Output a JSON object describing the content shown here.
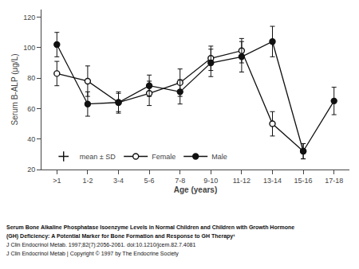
{
  "chart_data": {
    "type": "line",
    "title": [
      "Serum Bone Alkaline Phosphatase Isoenzyme Levels in Normal Children and Children with Growth Hormone",
      "(GH) Deficiency: A Potential Marker for Bone Formation and Response to GH Therapy¹"
    ],
    "subtitle": [
      "J Clin Endocrinol Metab. 1997;82(7):2056-2061. doi:10.1210/jcem.82.7.4081",
      "J Clin Endocrinol Metab | Copyright © 1997 by The Endocrine Society"
    ],
    "x_label": "Age (years)",
    "y_label": "Serum B-ALP (μg/L)",
    "categories": [
      ">1",
      "1-2",
      "3-4",
      "5-6",
      "7-8",
      "9-10",
      "11-12",
      "13-14",
      "15-16",
      "17-18"
    ],
    "series": [
      {
        "name": "mean ± SD",
        "color": "#111111",
        "marker": "cross",
        "line_style": "none",
        "values": [
          null,
          null,
          null,
          null,
          null,
          null,
          null,
          null,
          null,
          null
        ]
      },
      {
        "name": "Female",
        "color": "#111111",
        "marker": "open circle",
        "line_style": "solid",
        "values": [
          83,
          78,
          64,
          70,
          77,
          93,
          98,
          50,
          32,
          null
        ],
        "error": [
          8,
          10,
          6,
          8,
          9,
          8,
          8,
          8,
          5,
          null
        ]
      },
      {
        "name": "Male",
        "color": "#111111",
        "marker": "circle",
        "line_style": "solid",
        "values": [
          102,
          63,
          64,
          75,
          71,
          90,
          94,
          104,
          32,
          65
        ],
        "error": [
          8,
          8,
          7,
          7,
          8,
          9,
          10,
          10,
          5,
          9
        ]
      }
    ],
    "ylim": [
      20,
      125
    ],
    "yticks": [
      20,
      40,
      60,
      80,
      100,
      120
    ],
    "grid": false,
    "legend": "lower left"
  }
}
